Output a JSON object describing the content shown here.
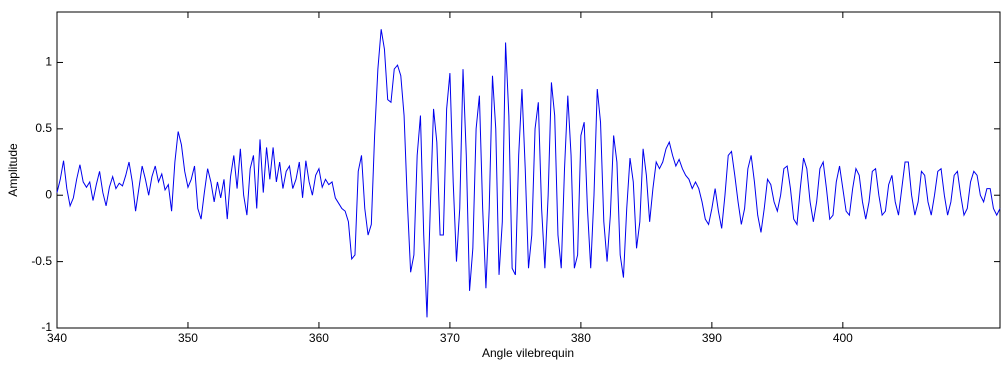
{
  "chart_data": {
    "type": "line",
    "xlabel": "Angle vilebrequin",
    "ylabel": "Amplitude",
    "color": "#0000ee",
    "grid": false,
    "xlim": [
      340,
      412
    ],
    "ylim": [
      -1,
      1.38
    ],
    "xticks": [
      340,
      350,
      360,
      370,
      380,
      390,
      400
    ],
    "yticks": [
      -1,
      -0.5,
      0,
      0.5,
      1
    ],
    "x": [
      340,
      340.25,
      340.5,
      340.75,
      341,
      341.25,
      341.5,
      341.75,
      342,
      342.25,
      342.5,
      342.75,
      343,
      343.25,
      343.5,
      343.75,
      344,
      344.25,
      344.5,
      344.75,
      345,
      345.25,
      345.5,
      345.75,
      346,
      346.25,
      346.5,
      346.75,
      347,
      347.25,
      347.5,
      347.75,
      348,
      348.25,
      348.5,
      348.75,
      349,
      349.25,
      349.5,
      349.75,
      350,
      350.25,
      350.5,
      350.75,
      351,
      351.25,
      351.5,
      351.75,
      352,
      352.25,
      352.5,
      352.75,
      353,
      353.25,
      353.5,
      353.75,
      354,
      354.25,
      354.5,
      354.75,
      355,
      355.25,
      355.5,
      355.75,
      356,
      356.25,
      356.5,
      356.75,
      357,
      357.25,
      357.5,
      357.75,
      358,
      358.25,
      358.5,
      358.75,
      359,
      359.25,
      359.5,
      359.75,
      360,
      360.25,
      360.5,
      360.75,
      361,
      361.25,
      361.5,
      361.75,
      362,
      362.25,
      362.5,
      362.75,
      363,
      363.25,
      363.5,
      363.75,
      364,
      364.25,
      364.5,
      364.75,
      365,
      365.25,
      365.5,
      365.75,
      366,
      366.25,
      366.5,
      366.75,
      367,
      367.25,
      367.5,
      367.75,
      368,
      368.25,
      368.5,
      368.75,
      369,
      369.25,
      369.5,
      369.75,
      370,
      370.25,
      370.5,
      370.75,
      371,
      371.25,
      371.5,
      371.75,
      372,
      372.25,
      372.5,
      372.75,
      373,
      373.25,
      373.5,
      373.75,
      374,
      374.25,
      374.5,
      374.75,
      375,
      375.25,
      375.5,
      375.75,
      376,
      376.25,
      376.5,
      376.75,
      377,
      377.25,
      377.5,
      377.75,
      378,
      378.25,
      378.5,
      378.75,
      379,
      379.25,
      379.5,
      379.75,
      380,
      380.25,
      380.5,
      380.75,
      381,
      381.25,
      381.5,
      381.75,
      382,
      382.25,
      382.5,
      382.75,
      383,
      383.25,
      383.5,
      383.75,
      384,
      384.25,
      384.5,
      384.75,
      385,
      385.25,
      385.5,
      385.75,
      386,
      386.25,
      386.5,
      386.75,
      387,
      387.25,
      387.5,
      387.75,
      388,
      388.25,
      388.5,
      388.75,
      389,
      389.25,
      389.5,
      389.75,
      390,
      390.25,
      390.5,
      390.75,
      391,
      391.25,
      391.5,
      391.75,
      392,
      392.25,
      392.5,
      392.75,
      393,
      393.25,
      393.5,
      393.75,
      394,
      394.25,
      394.5,
      394.75,
      395,
      395.25,
      395.5,
      395.75,
      396,
      396.25,
      396.5,
      396.75,
      397,
      397.25,
      397.5,
      397.75,
      398,
      398.25,
      398.5,
      398.75,
      399,
      399.25,
      399.5,
      399.75,
      400,
      400.25,
      400.5,
      400.75,
      401,
      401.25,
      401.5,
      401.75,
      402,
      402.25,
      402.5,
      402.75,
      403,
      403.25,
      403.5,
      403.75,
      404,
      404.25,
      404.5,
      404.75,
      405,
      405.25,
      405.5,
      405.75,
      406,
      406.25,
      406.5,
      406.75,
      407,
      407.25,
      407.5,
      407.75,
      408,
      408.25,
      408.5,
      408.75,
      409,
      409.25,
      409.5,
      409.75,
      410,
      410.25,
      410.5,
      410.75,
      411,
      411.25,
      411.5,
      411.75,
      412
    ],
    "values": [
      0.02,
      0.12,
      0.26,
      0.05,
      -0.08,
      -0.02,
      0.12,
      0.23,
      0.1,
      0.06,
      0.1,
      -0.04,
      0.08,
      0.18,
      0.02,
      -0.08,
      0.06,
      0.14,
      0.05,
      0.09,
      0.07,
      0.15,
      0.25,
      0.1,
      -0.12,
      0.05,
      0.22,
      0.12,
      0,
      0.14,
      0.22,
      0.1,
      0.16,
      0.04,
      0.08,
      -0.12,
      0.25,
      0.48,
      0.38,
      0.18,
      0.06,
      0.12,
      0.22,
      -0.1,
      -0.18,
      0.02,
      0.2,
      0.1,
      -0.05,
      0.1,
      -0.02,
      0.12,
      -0.18,
      0.14,
      0.3,
      0.05,
      0.35,
      0,
      -0.15,
      0.2,
      0.3,
      -0.1,
      0.42,
      0.02,
      0.36,
      0.12,
      0.36,
      0.1,
      0.25,
      0.05,
      0.18,
      0.22,
      0.05,
      0.12,
      0.25,
      -0.02,
      0.26,
      0.1,
      0,
      0.15,
      0.2,
      0.06,
      0.12,
      0.08,
      0.1,
      -0.02,
      -0.06,
      -0.1,
      -0.12,
      -0.2,
      -0.48,
      -0.45,
      0.18,
      0.3,
      -0.1,
      -0.3,
      -0.22,
      0.45,
      0.95,
      1.25,
      1.1,
      0.72,
      0.7,
      0.95,
      0.98,
      0.9,
      0.6,
      -0.05,
      -0.58,
      -0.45,
      0.3,
      0.6,
      -0.3,
      -0.92,
      -0.1,
      0.65,
      0.4,
      -0.3,
      -0.3,
      0.65,
      0.92,
      0.1,
      -0.5,
      -0.1,
      0.95,
      0.3,
      -0.72,
      -0.4,
      0.5,
      0.75,
      -0.1,
      -0.7,
      -0.1,
      0.9,
      0.5,
      -0.6,
      -0.2,
      1.15,
      0.6,
      -0.55,
      -0.6,
      0.3,
      0.8,
      0.2,
      -0.55,
      -0.3,
      0.5,
      0.7,
      -0.1,
      -0.55,
      0,
      0.85,
      0.6,
      -0.3,
      -0.55,
      0.2,
      0.75,
      0.3,
      -0.55,
      -0.45,
      0.45,
      0.55,
      -0.1,
      -0.55,
      0,
      0.8,
      0.55,
      -0.2,
      -0.5,
      -0.15,
      0.45,
      0.25,
      -0.45,
      -0.62,
      -0.1,
      0.28,
      0.1,
      -0.4,
      -0.2,
      0.35,
      0.15,
      -0.2,
      0.05,
      0.25,
      0.2,
      0.25,
      0.35,
      0.4,
      0.3,
      0.22,
      0.27,
      0.2,
      0.15,
      0.12,
      0.05,
      0.1,
      0.05,
      -0.05,
      -0.18,
      -0.22,
      -0.1,
      0.05,
      -0.12,
      -0.25,
      0,
      0.3,
      0.33,
      0.15,
      -0.05,
      -0.22,
      -0.1,
      0.2,
      0.3,
      0.1,
      -0.15,
      -0.28,
      -0.1,
      0.12,
      0.08,
      -0.05,
      -0.12,
      0,
      0.2,
      0.22,
      0.05,
      -0.18,
      -0.22,
      0.05,
      0.28,
      0.2,
      -0.05,
      -0.2,
      -0.05,
      0.2,
      0.25,
      0.05,
      -0.18,
      -0.15,
      0.1,
      0.22,
      0.05,
      -0.12,
      -0.15,
      0.05,
      0.2,
      0.15,
      -0.05,
      -0.18,
      -0.05,
      0.18,
      0.2,
      0,
      -0.15,
      -0.12,
      0.08,
      0.15,
      -0.05,
      -0.15,
      0.05,
      0.25,
      0.25,
      0,
      -0.15,
      -0.05,
      0.18,
      0.15,
      -0.05,
      -0.15,
      0,
      0.18,
      0.2,
      0,
      -0.15,
      -0.05,
      0.15,
      0.18,
      0,
      -0.15,
      -0.1,
      0.1,
      0.18,
      0.15,
      0,
      -0.05,
      0.05,
      0.05,
      -0.1,
      -0.15,
      -0.1
    ]
  }
}
